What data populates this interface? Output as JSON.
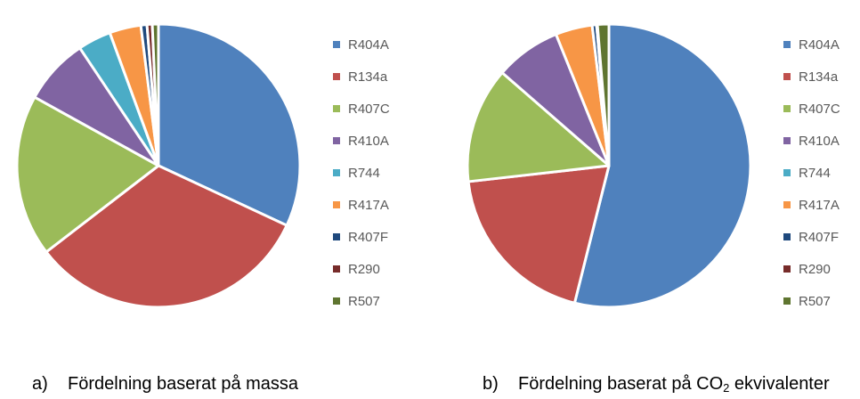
{
  "chart_data": [
    {
      "type": "pie",
      "title": "Fördelning baserat på massa",
      "caption_label": "a)",
      "caption_text": "Fördelning baserat på massa",
      "categories": [
        "R404A",
        "R134a",
        "R407C",
        "R410A",
        "R744",
        "R417A",
        "R407F",
        "R290",
        "R507"
      ],
      "values": [
        32.0,
        32.7,
        18.5,
        7.6,
        3.8,
        3.6,
        0.7,
        0.6,
        0.7
      ],
      "unit": "%",
      "legend_position": "right"
    },
    {
      "type": "pie",
      "title": "Fördelning baserat på CO2 ekvivalenter",
      "caption_label": "b)",
      "caption_text_before": "Fördelning baserat på CO",
      "caption_sub": "2",
      "caption_text_after": " ekvivalenter",
      "categories": [
        "R404A",
        "R134a",
        "R407C",
        "R410A",
        "R744",
        "R417A",
        "R407F",
        "R290",
        "R507"
      ],
      "values": [
        53.9,
        19.3,
        13.2,
        7.5,
        0.0,
        4.2,
        0.5,
        0.1,
        1.3
      ],
      "unit": "%",
      "legend_position": "right"
    }
  ],
  "colors": [
    "#4F81BD",
    "#C0504D",
    "#9BBB59",
    "#8064A2",
    "#4BACC6",
    "#F79646",
    "#1F497D",
    "#772C2A",
    "#5F7530"
  ]
}
